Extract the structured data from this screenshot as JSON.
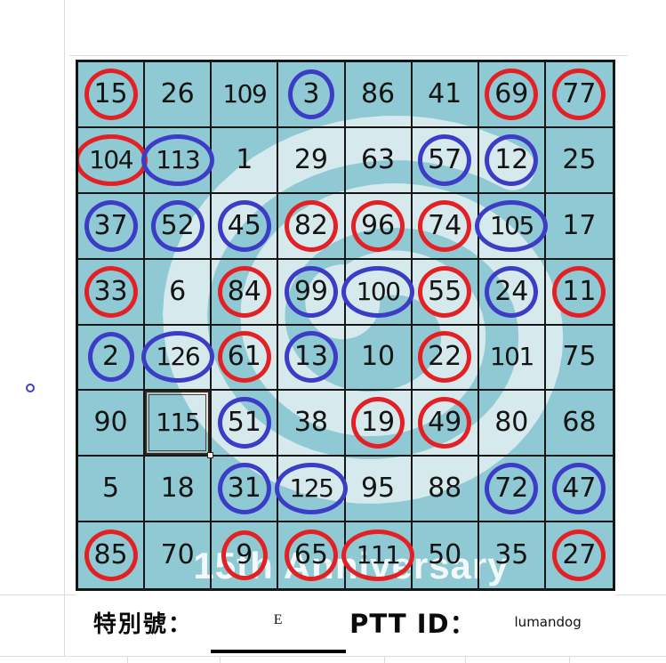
{
  "board": {
    "rows": 8,
    "cols": 8,
    "watermark_text": "15th Anniversary",
    "cells": [
      {
        "v": "15",
        "mark": "red"
      },
      {
        "v": "26"
      },
      {
        "v": "109"
      },
      {
        "v": "3",
        "mark": "blue"
      },
      {
        "v": "86"
      },
      {
        "v": "41"
      },
      {
        "v": "69",
        "mark": "red"
      },
      {
        "v": "77",
        "mark": "red"
      },
      {
        "v": "104",
        "mark": "red"
      },
      {
        "v": "113",
        "mark": "blue"
      },
      {
        "v": "1"
      },
      {
        "v": "29"
      },
      {
        "v": "63"
      },
      {
        "v": "57",
        "mark": "blue"
      },
      {
        "v": "12",
        "mark": "blue"
      },
      {
        "v": "25"
      },
      {
        "v": "37",
        "mark": "blue"
      },
      {
        "v": "52",
        "mark": "blue"
      },
      {
        "v": "45",
        "mark": "blue"
      },
      {
        "v": "82",
        "mark": "red"
      },
      {
        "v": "96",
        "mark": "red"
      },
      {
        "v": "74",
        "mark": "red"
      },
      {
        "v": "105",
        "mark": "blue"
      },
      {
        "v": "17"
      },
      {
        "v": "33",
        "mark": "red"
      },
      {
        "v": "6"
      },
      {
        "v": "84",
        "mark": "red"
      },
      {
        "v": "99",
        "mark": "blue"
      },
      {
        "v": "100",
        "mark": "blue"
      },
      {
        "v": "55",
        "mark": "red"
      },
      {
        "v": "24",
        "mark": "blue"
      },
      {
        "v": "11",
        "mark": "red"
      },
      {
        "v": "2",
        "mark": "blue"
      },
      {
        "v": "126",
        "mark": "blue"
      },
      {
        "v": "61",
        "mark": "red"
      },
      {
        "v": "13",
        "mark": "blue"
      },
      {
        "v": "10"
      },
      {
        "v": "22",
        "mark": "red"
      },
      {
        "v": "101"
      },
      {
        "v": "75"
      },
      {
        "v": "90"
      },
      {
        "v": "115",
        "selected": true
      },
      {
        "v": "51",
        "mark": "blue"
      },
      {
        "v": "38"
      },
      {
        "v": "19",
        "mark": "red"
      },
      {
        "v": "49",
        "mark": "red"
      },
      {
        "v": "80"
      },
      {
        "v": "68"
      },
      {
        "v": "5"
      },
      {
        "v": "18"
      },
      {
        "v": "31",
        "mark": "blue"
      },
      {
        "v": "125",
        "mark": "blue"
      },
      {
        "v": "95"
      },
      {
        "v": "88"
      },
      {
        "v": "72",
        "mark": "blue"
      },
      {
        "v": "47",
        "mark": "blue"
      },
      {
        "v": "85",
        "mark": "red"
      },
      {
        "v": "70"
      },
      {
        "v": "9",
        "mark": "red"
      },
      {
        "v": "65",
        "mark": "red"
      },
      {
        "v": "111",
        "mark": "red"
      },
      {
        "v": "50"
      },
      {
        "v": "35"
      },
      {
        "v": "27",
        "mark": "red"
      }
    ]
  },
  "footer": {
    "special_label": "特別號：",
    "special_value": "E",
    "ptt_label": "PTT ID：",
    "ptt_value": "lumandog"
  },
  "colors": {
    "cell_background": "#8fc9d3",
    "watermark_light": "#d6eaee",
    "red_circle": "#e32125",
    "blue_circle": "#3c3cc6",
    "grid_line": "#161616",
    "watermark_text": "#ffffff"
  }
}
